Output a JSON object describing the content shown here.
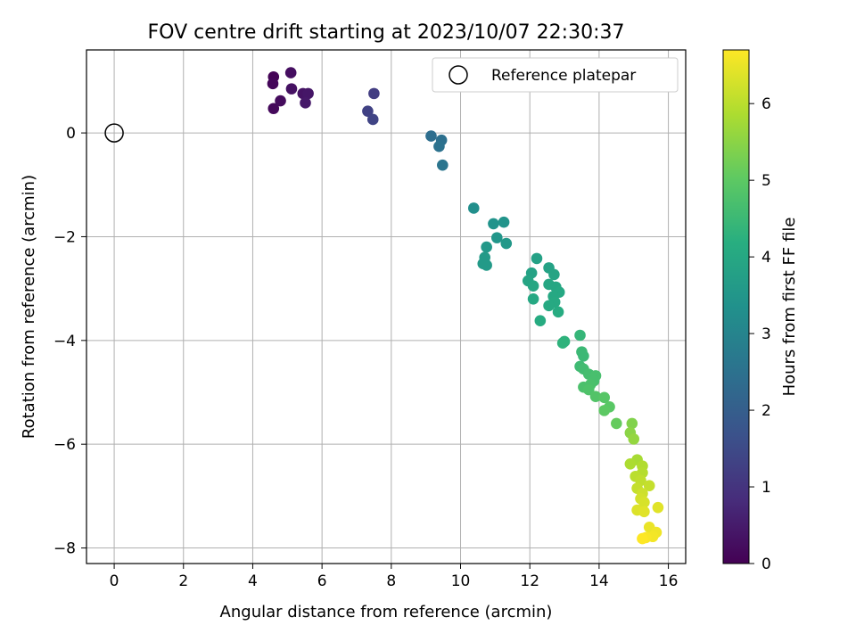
{
  "chart_data": {
    "type": "scatter",
    "title": "FOV centre drift starting at 2023/10/07 22:30:37",
    "xlabel": "Angular distance from reference (arcmin)",
    "ylabel": "Rotation from reference (arcmin)",
    "xlim": [
      -0.8,
      16.5
    ],
    "ylim": [
      -8.3,
      1.6
    ],
    "xticks": [
      0,
      2,
      4,
      6,
      8,
      10,
      12,
      14,
      16
    ],
    "yticks": [
      -8,
      -6,
      -4,
      -2,
      0
    ],
    "grid": true,
    "legend": {
      "position": "top-right",
      "entries": [
        "Reference platepar"
      ]
    },
    "reference_point": {
      "x": 0,
      "y": 0
    },
    "colorbar": {
      "label": "Hours from first FF file",
      "min": 0,
      "max": 6.7,
      "ticks": [
        0,
        1,
        2,
        3,
        4,
        5,
        6
      ],
      "colormap": "viridis"
    },
    "points": [
      {
        "x": 4.6,
        "y": 1.08,
        "c": 0.05
      },
      {
        "x": 4.58,
        "y": 0.95,
        "c": 0.1
      },
      {
        "x": 4.6,
        "y": 0.47,
        "c": 0.15
      },
      {
        "x": 4.8,
        "y": 0.62,
        "c": 0.2
      },
      {
        "x": 5.1,
        "y": 1.16,
        "c": 0.25
      },
      {
        "x": 5.12,
        "y": 0.85,
        "c": 0.3
      },
      {
        "x": 5.45,
        "y": 0.76,
        "c": 0.35
      },
      {
        "x": 5.6,
        "y": 0.76,
        "c": 0.4
      },
      {
        "x": 5.52,
        "y": 0.58,
        "c": 0.45
      },
      {
        "x": 7.5,
        "y": 0.76,
        "c": 1.2
      },
      {
        "x": 7.32,
        "y": 0.42,
        "c": 1.3
      },
      {
        "x": 7.47,
        "y": 0.26,
        "c": 1.35
      },
      {
        "x": 9.15,
        "y": -0.06,
        "c": 2.4
      },
      {
        "x": 9.45,
        "y": -0.14,
        "c": 2.45
      },
      {
        "x": 9.38,
        "y": -0.26,
        "c": 2.5
      },
      {
        "x": 9.48,
        "y": -0.62,
        "c": 2.6
      },
      {
        "x": 10.38,
        "y": -1.45,
        "c": 3.3
      },
      {
        "x": 10.95,
        "y": -1.75,
        "c": 3.4
      },
      {
        "x": 11.25,
        "y": -1.72,
        "c": 3.45
      },
      {
        "x": 11.05,
        "y": -2.02,
        "c": 3.5
      },
      {
        "x": 11.32,
        "y": -2.13,
        "c": 3.55
      },
      {
        "x": 10.75,
        "y": -2.2,
        "c": 3.55
      },
      {
        "x": 10.7,
        "y": -2.4,
        "c": 3.6
      },
      {
        "x": 10.65,
        "y": -2.52,
        "c": 3.6
      },
      {
        "x": 10.75,
        "y": -2.55,
        "c": 3.62
      },
      {
        "x": 12.2,
        "y": -2.42,
        "c": 3.8
      },
      {
        "x": 12.55,
        "y": -2.6,
        "c": 3.85
      },
      {
        "x": 12.05,
        "y": -2.7,
        "c": 3.85
      },
      {
        "x": 12.7,
        "y": -2.73,
        "c": 3.9
      },
      {
        "x": 11.95,
        "y": -2.85,
        "c": 3.9
      },
      {
        "x": 12.1,
        "y": -2.95,
        "c": 3.95
      },
      {
        "x": 12.55,
        "y": -2.92,
        "c": 3.95
      },
      {
        "x": 12.75,
        "y": -2.97,
        "c": 3.95
      },
      {
        "x": 12.85,
        "y": -3.07,
        "c": 4.0
      },
      {
        "x": 12.68,
        "y": -3.15,
        "c": 4.0
      },
      {
        "x": 12.1,
        "y": -3.2,
        "c": 4.0
      },
      {
        "x": 12.72,
        "y": -3.26,
        "c": 4.05
      },
      {
        "x": 12.55,
        "y": -3.33,
        "c": 4.05
      },
      {
        "x": 12.82,
        "y": -3.45,
        "c": 4.1
      },
      {
        "x": 12.3,
        "y": -3.62,
        "c": 4.1
      },
      {
        "x": 13.0,
        "y": -4.02,
        "c": 4.3
      },
      {
        "x": 12.95,
        "y": -4.05,
        "c": 4.3
      },
      {
        "x": 13.45,
        "y": -3.9,
        "c": 4.4
      },
      {
        "x": 13.5,
        "y": -4.22,
        "c": 4.5
      },
      {
        "x": 13.55,
        "y": -4.3,
        "c": 4.5
      },
      {
        "x": 13.45,
        "y": -4.5,
        "c": 4.55
      },
      {
        "x": 13.55,
        "y": -4.55,
        "c": 4.6
      },
      {
        "x": 13.7,
        "y": -4.65,
        "c": 4.65
      },
      {
        "x": 13.9,
        "y": -4.68,
        "c": 4.7
      },
      {
        "x": 13.85,
        "y": -4.78,
        "c": 4.7
      },
      {
        "x": 13.75,
        "y": -4.85,
        "c": 4.75
      },
      {
        "x": 13.55,
        "y": -4.9,
        "c": 4.75
      },
      {
        "x": 13.7,
        "y": -4.95,
        "c": 4.8
      },
      {
        "x": 13.9,
        "y": -5.08,
        "c": 4.85
      },
      {
        "x": 14.15,
        "y": -5.1,
        "c": 4.9
      },
      {
        "x": 14.3,
        "y": -5.28,
        "c": 4.95
      },
      {
        "x": 14.15,
        "y": -5.35,
        "c": 5.0
      },
      {
        "x": 14.5,
        "y": -5.6,
        "c": 5.1
      },
      {
        "x": 14.95,
        "y": -5.6,
        "c": 5.4
      },
      {
        "x": 14.9,
        "y": -5.78,
        "c": 5.5
      },
      {
        "x": 15.0,
        "y": -5.9,
        "c": 5.6
      },
      {
        "x": 15.1,
        "y": -6.3,
        "c": 5.8
      },
      {
        "x": 14.9,
        "y": -6.38,
        "c": 5.85
      },
      {
        "x": 15.25,
        "y": -6.42,
        "c": 5.9
      },
      {
        "x": 15.25,
        "y": -6.55,
        "c": 5.95
      },
      {
        "x": 15.05,
        "y": -6.62,
        "c": 6.0
      },
      {
        "x": 15.2,
        "y": -6.7,
        "c": 6.05
      },
      {
        "x": 15.45,
        "y": -6.8,
        "c": 6.1
      },
      {
        "x": 15.1,
        "y": -6.85,
        "c": 6.1
      },
      {
        "x": 15.25,
        "y": -6.95,
        "c": 6.2
      },
      {
        "x": 15.2,
        "y": -7.05,
        "c": 6.25
      },
      {
        "x": 15.3,
        "y": -7.12,
        "c": 6.3
      },
      {
        "x": 15.7,
        "y": -7.22,
        "c": 6.4
      },
      {
        "x": 15.1,
        "y": -7.27,
        "c": 6.35
      },
      {
        "x": 15.3,
        "y": -7.3,
        "c": 6.4
      },
      {
        "x": 15.45,
        "y": -7.6,
        "c": 6.5
      },
      {
        "x": 15.65,
        "y": -7.7,
        "c": 6.55
      },
      {
        "x": 15.55,
        "y": -7.78,
        "c": 6.6
      },
      {
        "x": 15.35,
        "y": -7.8,
        "c": 6.65
      },
      {
        "x": 15.25,
        "y": -7.82,
        "c": 6.7
      }
    ]
  }
}
